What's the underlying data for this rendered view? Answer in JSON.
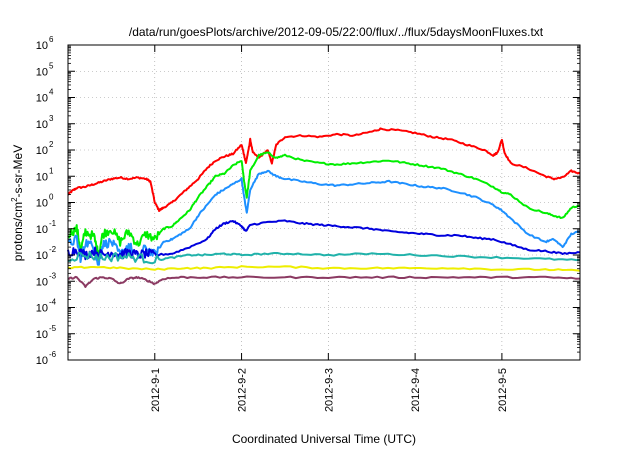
{
  "chart_data": {
    "type": "line",
    "title": "/data/run/goesPlots/archive/2012-09-05/22:00/flux/../flux/5daysMoonFluxes.txt",
    "xlabel": "Coordinated Universal Time (UTC)",
    "ylabel": "protons/cm²-s-sr-MeV",
    "ylabel_parts": {
      "pre": "protons/cm",
      "sup": "2",
      "post": "-s-sr-MeV"
    },
    "yscale": "log",
    "ylim_exponents": [
      -6,
      6
    ],
    "y_tick_base": "10",
    "y_tick_exponents": [
      "-6",
      "-5",
      "-4",
      "-3",
      "-2",
      "-1",
      "0",
      "1",
      "2",
      "3",
      "4",
      "5",
      "6"
    ],
    "x_axis_unit": "days",
    "x_range_days": [
      0,
      5.9
    ],
    "x_ticks": [
      {
        "day": 1,
        "label": "2012-9-1"
      },
      {
        "day": 2,
        "label": "2012-9-2"
      },
      {
        "day": 3,
        "label": "2012-9-3"
      },
      {
        "day": 4,
        "label": "2012-9-4"
      },
      {
        "day": 5,
        "label": "2012-9-5"
      }
    ],
    "grid": true,
    "legend": "none",
    "series": [
      {
        "color": "#ff0000",
        "points": [
          [
            0,
            0.3
          ],
          [
            0.05,
            0.45
          ],
          [
            0.1,
            0.55
          ],
          [
            0.2,
            0.6
          ],
          [
            0.3,
            0.7
          ],
          [
            0.4,
            0.8
          ],
          [
            0.5,
            0.9
          ],
          [
            0.6,
            0.95
          ],
          [
            0.7,
            0.9
          ],
          [
            0.8,
            0.95
          ],
          [
            0.9,
            0.9
          ],
          [
            0.95,
            0.8
          ],
          [
            1.0,
            0.0
          ],
          [
            1.05,
            -0.3
          ],
          [
            1.1,
            -0.2
          ],
          [
            1.2,
            0.0
          ],
          [
            1.3,
            0.3
          ],
          [
            1.4,
            0.6
          ],
          [
            1.5,
            0.9
          ],
          [
            1.6,
            1.3
          ],
          [
            1.7,
            1.6
          ],
          [
            1.8,
            1.75
          ],
          [
            1.9,
            1.85
          ],
          [
            2.0,
            2.2
          ],
          [
            2.03,
            1.8
          ],
          [
            2.05,
            1.5
          ],
          [
            2.08,
            2.0
          ],
          [
            2.1,
            2.4
          ],
          [
            2.13,
            1.9
          ],
          [
            2.2,
            1.7
          ],
          [
            2.3,
            2.0
          ],
          [
            2.35,
            1.5
          ],
          [
            2.4,
            2.2
          ],
          [
            2.5,
            2.5
          ],
          [
            2.7,
            2.55
          ],
          [
            2.9,
            2.5
          ],
          [
            3.1,
            2.6
          ],
          [
            3.3,
            2.55
          ],
          [
            3.5,
            2.7
          ],
          [
            3.6,
            2.8
          ],
          [
            3.8,
            2.75
          ],
          [
            4.0,
            2.65
          ],
          [
            4.2,
            2.5
          ],
          [
            4.4,
            2.4
          ],
          [
            4.6,
            2.2
          ],
          [
            4.8,
            2.0
          ],
          [
            4.9,
            1.8
          ],
          [
            4.95,
            1.9
          ],
          [
            5.0,
            2.4
          ],
          [
            5.03,
            1.9
          ],
          [
            5.1,
            1.5
          ],
          [
            5.3,
            1.3
          ],
          [
            5.5,
            1.0
          ],
          [
            5.6,
            0.9
          ],
          [
            5.7,
            0.95
          ],
          [
            5.8,
            1.2
          ],
          [
            5.9,
            1.1
          ]
        ]
      },
      {
        "color": "#00ee00",
        "points": [
          [
            0,
            -1.2
          ],
          [
            0.1,
            -1.0
          ],
          [
            0.15,
            -1.8
          ],
          [
            0.2,
            -1.1
          ],
          [
            0.3,
            -1.3
          ],
          [
            0.35,
            -2.0
          ],
          [
            0.4,
            -1.2
          ],
          [
            0.5,
            -1.0
          ],
          [
            0.6,
            -1.5
          ],
          [
            0.7,
            -1.1
          ],
          [
            0.8,
            -1.6
          ],
          [
            0.9,
            -1.2
          ],
          [
            1.0,
            -1.4
          ],
          [
            1.1,
            -1.0
          ],
          [
            1.2,
            -0.9
          ],
          [
            1.3,
            -0.6
          ],
          [
            1.4,
            -0.3
          ],
          [
            1.5,
            0.2
          ],
          [
            1.6,
            0.6
          ],
          [
            1.7,
            1.0
          ],
          [
            1.8,
            1.1
          ],
          [
            1.9,
            1.4
          ],
          [
            2.0,
            1.6
          ],
          [
            2.03,
            0.8
          ],
          [
            2.06,
            0.2
          ],
          [
            2.1,
            1.2
          ],
          [
            2.2,
            1.8
          ],
          [
            2.3,
            1.9
          ],
          [
            2.4,
            1.7
          ],
          [
            2.5,
            1.8
          ],
          [
            2.7,
            1.6
          ],
          [
            2.9,
            1.5
          ],
          [
            3.1,
            1.45
          ],
          [
            3.3,
            1.5
          ],
          [
            3.5,
            1.55
          ],
          [
            3.7,
            1.6
          ],
          [
            3.9,
            1.5
          ],
          [
            4.1,
            1.4
          ],
          [
            4.3,
            1.3
          ],
          [
            4.5,
            1.1
          ],
          [
            4.7,
            0.9
          ],
          [
            4.9,
            0.6
          ],
          [
            5.0,
            0.4
          ],
          [
            5.1,
            0.3
          ],
          [
            5.3,
            -0.2
          ],
          [
            5.5,
            -0.4
          ],
          [
            5.6,
            -0.5
          ],
          [
            5.7,
            -0.6
          ],
          [
            5.8,
            -0.2
          ],
          [
            5.9,
            -0.1
          ]
        ]
      },
      {
        "color": "#1e90ff",
        "points": [
          [
            0,
            -1.6
          ],
          [
            0.1,
            -1.4
          ],
          [
            0.15,
            -2.2
          ],
          [
            0.2,
            -1.5
          ],
          [
            0.3,
            -1.7
          ],
          [
            0.35,
            -2.4
          ],
          [
            0.4,
            -1.6
          ],
          [
            0.5,
            -1.5
          ],
          [
            0.6,
            -2.0
          ],
          [
            0.7,
            -1.6
          ],
          [
            0.8,
            -2.1
          ],
          [
            0.9,
            -1.7
          ],
          [
            1.0,
            -2.0
          ],
          [
            1.1,
            -1.5
          ],
          [
            1.2,
            -1.4
          ],
          [
            1.3,
            -1.2
          ],
          [
            1.4,
            -1.0
          ],
          [
            1.5,
            -0.5
          ],
          [
            1.6,
            -0.1
          ],
          [
            1.7,
            0.3
          ],
          [
            1.8,
            0.5
          ],
          [
            1.9,
            0.7
          ],
          [
            2.0,
            0.9
          ],
          [
            2.03,
            0.2
          ],
          [
            2.06,
            -0.4
          ],
          [
            2.1,
            0.5
          ],
          [
            2.2,
            1.1
          ],
          [
            2.3,
            1.2
          ],
          [
            2.4,
            1.0
          ],
          [
            2.5,
            0.9
          ],
          [
            2.7,
            0.8
          ],
          [
            2.9,
            0.7
          ],
          [
            3.1,
            0.65
          ],
          [
            3.3,
            0.7
          ],
          [
            3.5,
            0.75
          ],
          [
            3.7,
            0.8
          ],
          [
            3.9,
            0.7
          ],
          [
            4.1,
            0.6
          ],
          [
            4.3,
            0.55
          ],
          [
            4.5,
            0.4
          ],
          [
            4.7,
            0.2
          ],
          [
            4.9,
            -0.1
          ],
          [
            5.0,
            -0.3
          ],
          [
            5.1,
            -0.6
          ],
          [
            5.3,
            -1.2
          ],
          [
            5.5,
            -1.5
          ],
          [
            5.6,
            -1.4
          ],
          [
            5.7,
            -1.7
          ],
          [
            5.8,
            -1.2
          ],
          [
            5.9,
            -1.1
          ]
        ]
      },
      {
        "color": "#0000dd",
        "points": [
          [
            0,
            -1.9
          ],
          [
            0.1,
            -1.8
          ],
          [
            0.2,
            -2.0
          ],
          [
            0.3,
            -1.85
          ],
          [
            0.4,
            -2.0
          ],
          [
            0.5,
            -1.9
          ],
          [
            0.6,
            -2.0
          ],
          [
            0.7,
            -1.9
          ],
          [
            0.8,
            -2.0
          ],
          [
            0.9,
            -1.95
          ],
          [
            1.0,
            -2.0
          ],
          [
            1.2,
            -1.95
          ],
          [
            1.4,
            -1.7
          ],
          [
            1.6,
            -1.4
          ],
          [
            1.7,
            -1.0
          ],
          [
            1.8,
            -0.8
          ],
          [
            1.9,
            -0.7
          ],
          [
            2.0,
            -0.9
          ],
          [
            2.05,
            -1.1
          ],
          [
            2.1,
            -0.85
          ],
          [
            2.3,
            -0.75
          ],
          [
            2.5,
            -0.7
          ],
          [
            2.7,
            -0.8
          ],
          [
            2.9,
            -0.85
          ],
          [
            3.1,
            -0.9
          ],
          [
            3.3,
            -0.95
          ],
          [
            3.5,
            -1.0
          ],
          [
            3.7,
            -1.1
          ],
          [
            3.9,
            -1.15
          ],
          [
            4.1,
            -1.2
          ],
          [
            4.3,
            -1.25
          ],
          [
            4.5,
            -1.25
          ],
          [
            4.7,
            -1.35
          ],
          [
            4.9,
            -1.4
          ],
          [
            5.1,
            -1.6
          ],
          [
            5.3,
            -1.8
          ],
          [
            5.5,
            -1.85
          ],
          [
            5.7,
            -1.95
          ],
          [
            5.9,
            -1.9
          ]
        ]
      },
      {
        "color": "#20b2aa",
        "points": [
          [
            0,
            -2.1
          ],
          [
            0.2,
            -2.0
          ],
          [
            0.4,
            -2.1
          ],
          [
            0.6,
            -2.05
          ],
          [
            0.8,
            -2.1
          ],
          [
            1.0,
            -2.2
          ],
          [
            1.2,
            -2.1
          ],
          [
            1.4,
            -2.0
          ],
          [
            1.6,
            -2.0
          ],
          [
            1.8,
            -1.95
          ],
          [
            2.0,
            -2.0
          ],
          [
            2.3,
            -1.95
          ],
          [
            2.6,
            -1.95
          ],
          [
            3.0,
            -2.0
          ],
          [
            3.5,
            -1.95
          ],
          [
            4.0,
            -2.0
          ],
          [
            4.5,
            -2.05
          ],
          [
            5.0,
            -2.1
          ],
          [
            5.5,
            -2.15
          ],
          [
            5.9,
            -2.2
          ]
        ]
      },
      {
        "color": "#eeee00",
        "points": [
          [
            0,
            -2.5
          ],
          [
            0.3,
            -2.45
          ],
          [
            0.6,
            -2.5
          ],
          [
            1.0,
            -2.55
          ],
          [
            1.3,
            -2.5
          ],
          [
            1.6,
            -2.5
          ],
          [
            2.0,
            -2.45
          ],
          [
            2.5,
            -2.45
          ],
          [
            3.0,
            -2.5
          ],
          [
            3.5,
            -2.5
          ],
          [
            4.0,
            -2.5
          ],
          [
            4.5,
            -2.5
          ],
          [
            5.0,
            -2.55
          ],
          [
            5.5,
            -2.55
          ],
          [
            5.9,
            -2.6
          ]
        ]
      },
      {
        "color": "#8b3a62",
        "points": [
          [
            0,
            -2.9
          ],
          [
            0.1,
            -2.85
          ],
          [
            0.2,
            -3.2
          ],
          [
            0.3,
            -2.9
          ],
          [
            0.4,
            -2.85
          ],
          [
            0.5,
            -2.9
          ],
          [
            0.6,
            -3.1
          ],
          [
            0.7,
            -2.9
          ],
          [
            0.8,
            -2.85
          ],
          [
            0.9,
            -2.95
          ],
          [
            1.0,
            -3.1
          ],
          [
            1.1,
            -2.9
          ],
          [
            1.3,
            -2.85
          ],
          [
            1.6,
            -2.85
          ],
          [
            2.0,
            -2.85
          ],
          [
            2.5,
            -2.85
          ],
          [
            3.0,
            -2.85
          ],
          [
            3.5,
            -2.85
          ],
          [
            4.0,
            -2.85
          ],
          [
            4.5,
            -2.85
          ],
          [
            5.0,
            -2.85
          ],
          [
            5.5,
            -2.85
          ],
          [
            5.9,
            -2.9
          ]
        ]
      }
    ]
  }
}
